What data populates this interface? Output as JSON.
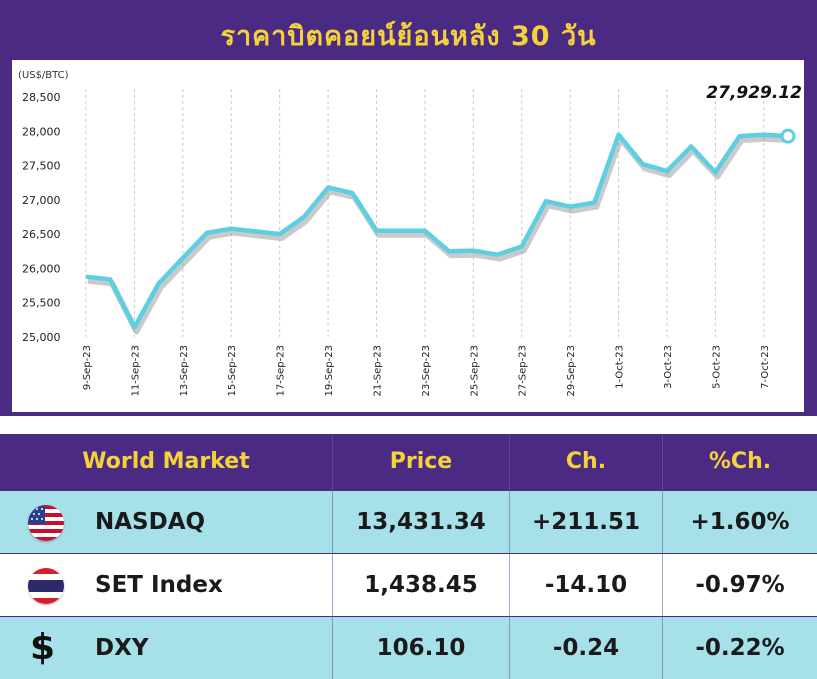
{
  "title": "ราคาบิตคอยน์ย้อนหลัง 30 วัน",
  "chart_data": {
    "type": "line",
    "unit_label": "(US$/BTC)",
    "ylim": [
      25000,
      28500
    ],
    "y_ticks": [
      "28,500",
      "28,000",
      "27,500",
      "27,000",
      "26,500",
      "26,000",
      "25,500",
      "25,000"
    ],
    "x": [
      "9-Sep-23",
      "10-Sep-23",
      "11-Sep-23",
      "12-Sep-23",
      "13-Sep-23",
      "14-Sep-23",
      "15-Sep-23",
      "16-Sep-23",
      "17-Sep-23",
      "18-Sep-23",
      "19-Sep-23",
      "20-Sep-23",
      "21-Sep-23",
      "22-Sep-23",
      "23-Sep-23",
      "24-Sep-23",
      "25-Sep-23",
      "26-Sep-23",
      "27-Sep-23",
      "28-Sep-23",
      "29-Sep-23",
      "30-Sep-23",
      "1-Oct-23",
      "2-Oct-23",
      "3-Oct-23",
      "4-Oct-23",
      "5-Oct-23",
      "6-Oct-23",
      "7-Oct-23",
      "8-Oct-23"
    ],
    "x_tick_labels": [
      "9-Sep-23",
      "11-Sep-23",
      "13-Sep-23",
      "15-Sep-23",
      "17-Sep-23",
      "19-Sep-23",
      "21-Sep-23",
      "23-Sep-23",
      "25-Sep-23",
      "27-Sep-23",
      "29-Sep-23",
      "1-Oct-23",
      "3-Oct-23",
      "5-Oct-23",
      "7-Oct-23"
    ],
    "values": [
      25880,
      25840,
      25140,
      25780,
      26150,
      26520,
      26580,
      26540,
      26500,
      26750,
      27180,
      27100,
      26550,
      26550,
      26550,
      26250,
      26260,
      26200,
      26320,
      26980,
      26900,
      26960,
      27950,
      27520,
      27420,
      27780,
      27400,
      27930,
      27950,
      27929.12
    ],
    "last_value_label": "27,929.12",
    "line_color": "#5ccfe2",
    "grid": "vertical"
  },
  "table": {
    "headers": [
      "World Market",
      "Price",
      "Ch.",
      "%Ch."
    ],
    "rows": [
      {
        "name": "NASDAQ",
        "price": "13,431.34",
        "change": "+211.51",
        "pct": "+1.60%",
        "icon": "us-flag-icon",
        "bg": "#a6e0e9"
      },
      {
        "name": "SET Index",
        "price": "1,438.45",
        "change": "-14.10",
        "pct": "-0.97%",
        "icon": "thai-flag-icon",
        "bg": "#ffffff"
      },
      {
        "name": "DXY",
        "price": "106.10",
        "change": "-0.24",
        "pct": "-0.22%",
        "icon": "dollar-icon",
        "bg": "#a6e0e9"
      }
    ],
    "header_color": "#f4d33a"
  }
}
